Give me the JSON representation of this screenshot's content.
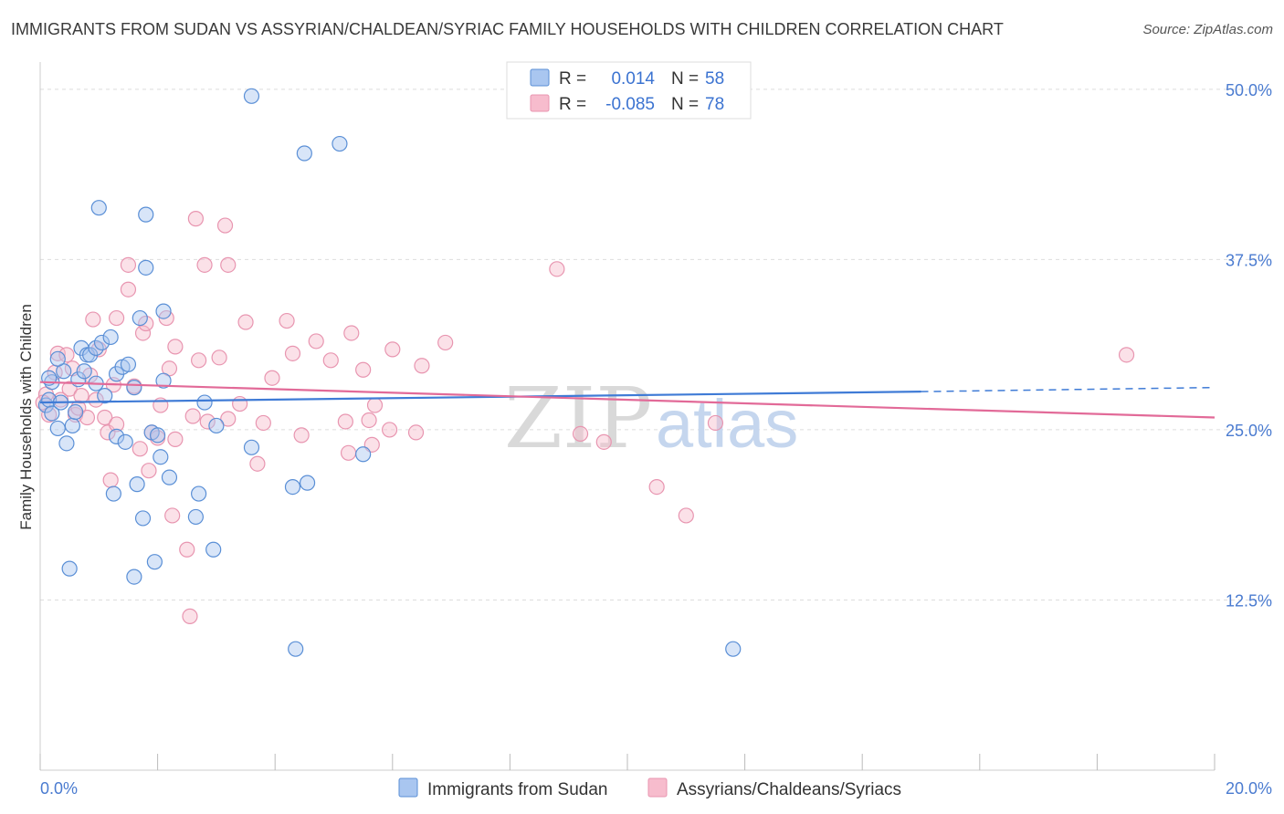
{
  "title": "IMMIGRANTS FROM SUDAN VS ASSYRIAN/CHALDEAN/SYRIAC FAMILY HOUSEHOLDS WITH CHILDREN CORRELATION CHART",
  "source": "Source: ZipAtlas.com",
  "watermark": {
    "zip": "ZIP",
    "atlas": "atlas"
  },
  "legend": {
    "r_label": "R =",
    "n_label": "N =",
    "entries": [
      {
        "r": "0.014",
        "n": "58"
      },
      {
        "r": "-0.085",
        "n": "78"
      }
    ]
  },
  "colors": {
    "blue_fill": "#a9c6f0",
    "blue_stroke": "#5a8fd6",
    "blue_line": "#3f7bd6",
    "pink_fill": "#f7bccd",
    "pink_stroke": "#e895b0",
    "pink_line": "#e26a98",
    "grid": "#dddddd"
  },
  "chart_data": {
    "type": "scatter",
    "title": "IMMIGRANTS FROM SUDAN VS ASSYRIAN/CHALDEAN/SYRIAC FAMILY HOUSEHOLDS WITH CHILDREN CORRELATION CHART",
    "xlabel": "",
    "ylabel": "Family Households with Children",
    "xlim": [
      0,
      20
    ],
    "ylim": [
      0,
      52
    ],
    "x_tick_labels": [
      "0.0%",
      "20.0%"
    ],
    "y_ticks": [
      12.5,
      25.0,
      37.5,
      50.0
    ],
    "y_tick_labels": [
      "12.5%",
      "25.0%",
      "37.5%",
      "50.0%"
    ],
    "grid": true,
    "legend_position": "top-center",
    "series": [
      {
        "name": "Immigrants from Sudan",
        "trend": {
          "x": [
            0,
            15
          ],
          "y": [
            27.0,
            27.8
          ],
          "dashed_to": [
            20,
            28.1
          ]
        },
        "points": [
          [
            0.1,
            26.8
          ],
          [
            0.15,
            27.2
          ],
          [
            0.2,
            28.5
          ],
          [
            0.2,
            26.2
          ],
          [
            0.3,
            25.1
          ],
          [
            0.35,
            27.0
          ],
          [
            0.4,
            29.3
          ],
          [
            0.45,
            24.0
          ],
          [
            0.5,
            14.8
          ],
          [
            0.55,
            25.3
          ],
          [
            0.6,
            26.3
          ],
          [
            0.65,
            28.7
          ],
          [
            0.7,
            31.0
          ],
          [
            0.75,
            29.3
          ],
          [
            0.8,
            30.5
          ],
          [
            0.85,
            30.5
          ],
          [
            0.95,
            31.0
          ],
          [
            0.95,
            28.4
          ],
          [
            1.0,
            41.3
          ],
          [
            1.05,
            31.4
          ],
          [
            1.1,
            27.5
          ],
          [
            1.2,
            31.8
          ],
          [
            1.25,
            20.3
          ],
          [
            1.3,
            29.1
          ],
          [
            1.3,
            24.5
          ],
          [
            1.4,
            29.6
          ],
          [
            1.45,
            24.1
          ],
          [
            1.5,
            29.8
          ],
          [
            1.6,
            28.1
          ],
          [
            1.6,
            14.2
          ],
          [
            1.65,
            21.0
          ],
          [
            1.7,
            33.2
          ],
          [
            1.75,
            18.5
          ],
          [
            1.8,
            40.8
          ],
          [
            1.8,
            36.9
          ],
          [
            1.9,
            24.8
          ],
          [
            1.95,
            15.3
          ],
          [
            2.0,
            24.6
          ],
          [
            2.05,
            23.0
          ],
          [
            2.1,
            28.6
          ],
          [
            2.1,
            33.7
          ],
          [
            2.2,
            21.5
          ],
          [
            2.65,
            18.6
          ],
          [
            2.7,
            20.3
          ],
          [
            2.8,
            27.0
          ],
          [
            2.95,
            16.2
          ],
          [
            3.0,
            25.3
          ],
          [
            3.6,
            23.7
          ],
          [
            3.6,
            49.5
          ],
          [
            4.3,
            20.8
          ],
          [
            4.35,
            8.9
          ],
          [
            4.5,
            45.3
          ],
          [
            4.55,
            21.1
          ],
          [
            5.1,
            46.0
          ],
          [
            5.5,
            23.2
          ],
          [
            11.8,
            8.9
          ],
          [
            0.15,
            28.8
          ],
          [
            0.3,
            30.2
          ]
        ]
      },
      {
        "name": "Assyrians/Chaldeans/Syriacs",
        "trend": {
          "x": [
            0,
            20
          ],
          "y": [
            28.5,
            25.9
          ]
        },
        "points": [
          [
            0.1,
            27.6
          ],
          [
            0.15,
            26.1
          ],
          [
            0.25,
            29.2
          ],
          [
            0.3,
            30.6
          ],
          [
            0.35,
            27.2
          ],
          [
            0.45,
            30.5
          ],
          [
            0.5,
            28.0
          ],
          [
            0.55,
            29.5
          ],
          [
            0.6,
            26.1
          ],
          [
            0.65,
            26.6
          ],
          [
            0.7,
            27.5
          ],
          [
            0.8,
            25.9
          ],
          [
            0.85,
            29.0
          ],
          [
            0.9,
            33.1
          ],
          [
            0.95,
            27.2
          ],
          [
            1.0,
            30.9
          ],
          [
            1.1,
            25.9
          ],
          [
            1.15,
            24.8
          ],
          [
            1.2,
            21.3
          ],
          [
            1.25,
            28.3
          ],
          [
            1.3,
            33.2
          ],
          [
            1.3,
            25.4
          ],
          [
            1.5,
            37.1
          ],
          [
            1.5,
            35.3
          ],
          [
            1.6,
            28.2
          ],
          [
            1.7,
            23.6
          ],
          [
            1.75,
            32.1
          ],
          [
            1.8,
            32.8
          ],
          [
            1.85,
            22.0
          ],
          [
            1.9,
            24.8
          ],
          [
            2.0,
            24.4
          ],
          [
            2.05,
            26.8
          ],
          [
            2.15,
            33.2
          ],
          [
            2.2,
            29.5
          ],
          [
            2.25,
            18.7
          ],
          [
            2.3,
            24.3
          ],
          [
            2.3,
            31.1
          ],
          [
            2.5,
            16.2
          ],
          [
            2.55,
            11.3
          ],
          [
            2.6,
            26.0
          ],
          [
            2.65,
            40.5
          ],
          [
            2.7,
            30.1
          ],
          [
            2.8,
            37.1
          ],
          [
            2.85,
            25.6
          ],
          [
            3.05,
            30.3
          ],
          [
            3.15,
            40.0
          ],
          [
            3.2,
            25.8
          ],
          [
            3.2,
            37.1
          ],
          [
            3.4,
            26.9
          ],
          [
            3.5,
            32.9
          ],
          [
            3.7,
            22.5
          ],
          [
            3.8,
            25.5
          ],
          [
            3.95,
            28.8
          ],
          [
            4.2,
            33.0
          ],
          [
            4.3,
            30.6
          ],
          [
            4.45,
            24.6
          ],
          [
            4.7,
            31.5
          ],
          [
            4.95,
            30.1
          ],
          [
            5.2,
            25.6
          ],
          [
            5.25,
            23.3
          ],
          [
            5.3,
            32.1
          ],
          [
            5.5,
            29.4
          ],
          [
            5.6,
            25.7
          ],
          [
            5.65,
            23.9
          ],
          [
            5.7,
            26.8
          ],
          [
            5.95,
            25.0
          ],
          [
            6.0,
            30.9
          ],
          [
            6.4,
            24.8
          ],
          [
            6.5,
            29.7
          ],
          [
            6.9,
            31.4
          ],
          [
            8.8,
            36.8
          ],
          [
            9.2,
            24.7
          ],
          [
            9.6,
            24.1
          ],
          [
            10.5,
            20.8
          ],
          [
            11.0,
            18.7
          ],
          [
            11.5,
            25.5
          ],
          [
            18.5,
            30.5
          ],
          [
            0.05,
            27.0
          ]
        ]
      }
    ]
  },
  "bottom_legend": [
    {
      "label": "Immigrants from Sudan"
    },
    {
      "label": "Assyrians/Chaldeans/Syriacs"
    }
  ],
  "axis": {
    "x_min_label": "0.0%",
    "x_max_label": "20.0%",
    "y_label": "Family Households with Children"
  }
}
